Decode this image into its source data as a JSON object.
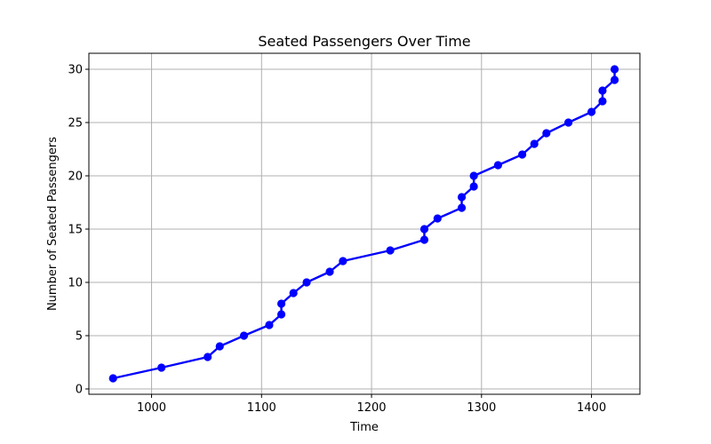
{
  "chart_data": {
    "type": "line",
    "title": "Seated Passengers Over Time",
    "xlabel": "Time",
    "ylabel": "Number of Seated Passengers",
    "xlim": [
      943,
      1444
    ],
    "ylim": [
      -0.5,
      31.5
    ],
    "xticks": [
      1000,
      1100,
      1200,
      1300,
      1400
    ],
    "yticks": [
      0,
      5,
      10,
      15,
      20,
      25,
      30
    ],
    "grid": true,
    "series": [
      {
        "color": "#0000ff",
        "marker": "circle",
        "points": [
          [
            965,
            1
          ],
          [
            1009,
            2
          ],
          [
            1051,
            3
          ],
          [
            1062,
            4
          ],
          [
            1084,
            5
          ],
          [
            1107,
            6
          ],
          [
            1118,
            7
          ],
          [
            1118,
            8
          ],
          [
            1129,
            9
          ],
          [
            1141,
            10
          ],
          [
            1162,
            11
          ],
          [
            1174,
            12
          ],
          [
            1217,
            13
          ],
          [
            1248,
            14
          ],
          [
            1248,
            15
          ],
          [
            1260,
            16
          ],
          [
            1282,
            17
          ],
          [
            1282,
            18
          ],
          [
            1293,
            19
          ],
          [
            1293,
            20
          ],
          [
            1315,
            21
          ],
          [
            1337,
            22
          ],
          [
            1348,
            23
          ],
          [
            1359,
            24
          ],
          [
            1379,
            25
          ],
          [
            1400,
            26
          ],
          [
            1410,
            27
          ],
          [
            1410,
            28
          ],
          [
            1421,
            29
          ],
          [
            1421,
            30
          ]
        ]
      }
    ]
  }
}
